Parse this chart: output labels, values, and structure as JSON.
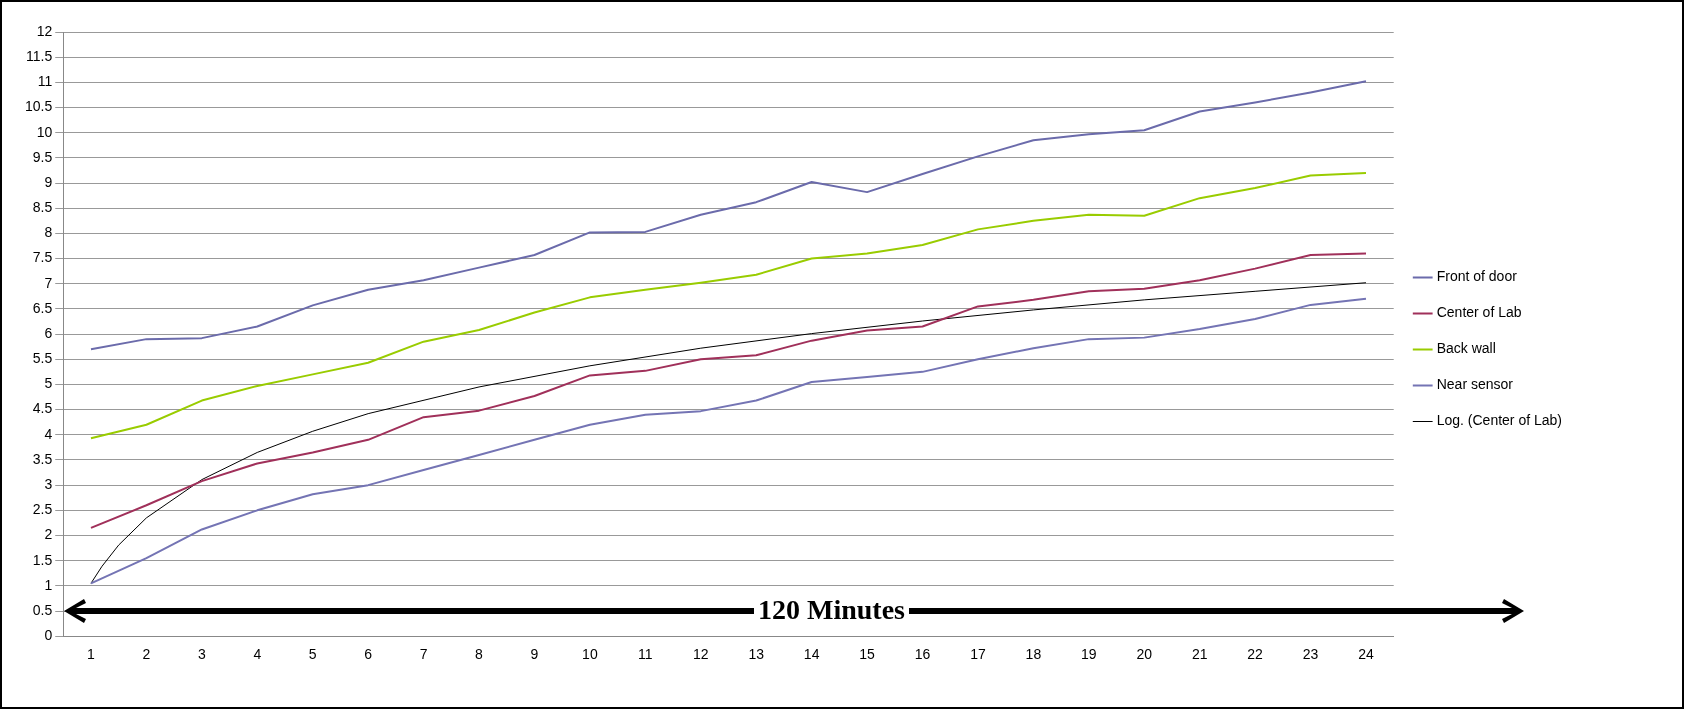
{
  "chart_data": {
    "type": "line",
    "x": [
      1,
      2,
      3,
      4,
      5,
      6,
      7,
      8,
      9,
      10,
      11,
      12,
      13,
      14,
      15,
      16,
      17,
      18,
      19,
      20,
      21,
      22,
      23,
      24
    ],
    "series": [
      {
        "name": "Front of door",
        "color": "#6b6bab",
        "values": [
          5.7,
          5.9,
          5.92,
          6.15,
          6.57,
          6.88,
          7.07,
          7.32,
          7.57,
          8.02,
          8.03,
          8.37,
          8.62,
          9.02,
          8.82,
          9.18,
          9.53,
          9.85,
          9.97,
          10.05,
          10.42,
          10.6,
          10.8,
          11.02
        ]
      },
      {
        "name": "Center of Lab",
        "color": "#a0305a",
        "values": [
          2.15,
          2.6,
          3.08,
          3.43,
          3.65,
          3.9,
          4.35,
          4.48,
          4.77,
          5.18,
          5.27,
          5.5,
          5.58,
          5.87,
          6.07,
          6.15,
          6.55,
          6.68,
          6.85,
          6.9,
          7.07,
          7.3,
          7.57,
          7.6
        ]
      },
      {
        "name": "Back wall",
        "color": "#99cc00",
        "values": [
          3.93,
          4.2,
          4.68,
          4.97,
          5.2,
          5.43,
          5.85,
          6.08,
          6.43,
          6.73,
          6.88,
          7.02,
          7.18,
          7.5,
          7.6,
          7.77,
          8.08,
          8.25,
          8.37,
          8.35,
          8.7,
          8.9,
          9.15,
          9.2
        ]
      },
      {
        "name": "Near sensor",
        "color": "#7474b4",
        "values": [
          1.05,
          1.55,
          2.12,
          2.5,
          2.82,
          3.0,
          3.3,
          3.6,
          3.9,
          4.2,
          4.4,
          4.47,
          4.68,
          5.05,
          5.15,
          5.25,
          5.5,
          5.72,
          5.9,
          5.93,
          6.1,
          6.3,
          6.58,
          6.7
        ]
      },
      {
        "name": "Log. (Center of Lab)",
        "color": "#000000",
        "x": [
          1,
          1.2,
          1.5,
          2,
          3,
          4,
          5,
          6,
          8,
          10,
          12,
          14,
          16,
          18,
          20,
          22,
          24
        ],
        "values": [
          1.05,
          1.39,
          1.81,
          2.35,
          3.11,
          3.65,
          4.07,
          4.42,
          4.95,
          5.37,
          5.72,
          6.01,
          6.26,
          6.48,
          6.68,
          6.85,
          7.02
        ]
      }
    ],
    "xlim": [
      0.5,
      24.5
    ],
    "xticks": [
      1,
      2,
      3,
      4,
      5,
      6,
      7,
      8,
      9,
      10,
      11,
      12,
      13,
      14,
      15,
      16,
      17,
      18,
      19,
      20,
      21,
      22,
      23,
      24
    ],
    "ylim": [
      0,
      12
    ],
    "yticks": [
      0,
      0.5,
      1,
      1.5,
      2,
      2.5,
      3,
      3.5,
      4,
      4.5,
      5,
      5.5,
      6,
      6.5,
      7,
      7.5,
      8,
      8.5,
      9,
      9.5,
      10,
      10.5,
      11,
      11.5,
      12
    ],
    "grid": "y",
    "legend": "right",
    "marker": "none",
    "line_style": "solid",
    "annotations": [
      "120 Minutes"
    ]
  }
}
